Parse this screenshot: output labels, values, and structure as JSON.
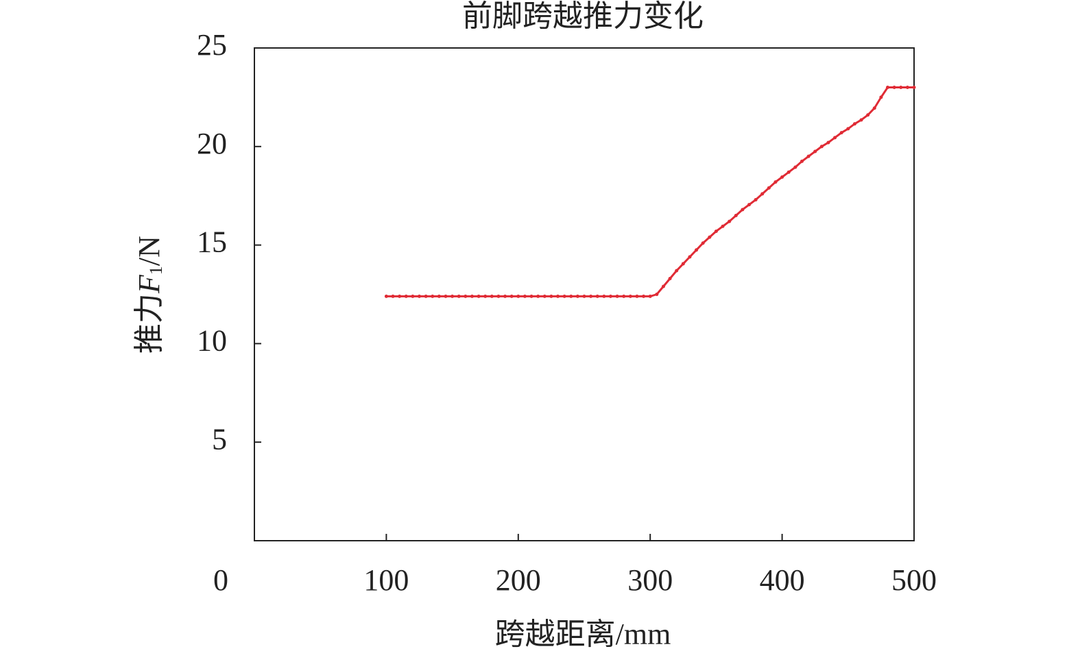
{
  "chart_data": {
    "type": "line",
    "title": "前脚跨越推力变化",
    "x_label": "跨越距离/mm",
    "y_label": {
      "name": "推力",
      "symbol": "F",
      "subscript": "1",
      "unit": "/N"
    },
    "x": [
      100,
      105,
      110,
      115,
      120,
      125,
      130,
      135,
      140,
      145,
      150,
      155,
      160,
      165,
      170,
      175,
      180,
      185,
      190,
      195,
      200,
      205,
      210,
      215,
      220,
      225,
      230,
      235,
      240,
      245,
      250,
      255,
      260,
      265,
      270,
      275,
      280,
      285,
      290,
      295,
      300,
      305,
      310,
      315,
      320,
      325,
      330,
      335,
      340,
      345,
      350,
      355,
      360,
      365,
      370,
      375,
      380,
      385,
      390,
      395,
      400,
      405,
      410,
      415,
      420,
      425,
      430,
      435,
      440,
      445,
      450,
      455,
      460,
      465,
      470,
      475,
      480,
      485,
      490,
      495,
      500
    ],
    "series": [
      {
        "color": "#e02b35",
        "values": [
          12.4,
          12.4,
          12.4,
          12.4,
          12.4,
          12.4,
          12.4,
          12.4,
          12.4,
          12.4,
          12.4,
          12.4,
          12.4,
          12.4,
          12.4,
          12.4,
          12.4,
          12.4,
          12.4,
          12.4,
          12.4,
          12.4,
          12.4,
          12.4,
          12.4,
          12.4,
          12.4,
          12.4,
          12.4,
          12.4,
          12.4,
          12.4,
          12.4,
          12.4,
          12.4,
          12.4,
          12.4,
          12.4,
          12.4,
          12.4,
          12.4,
          12.5,
          12.9,
          13.3,
          13.7,
          14.05,
          14.4,
          14.75,
          15.1,
          15.4,
          15.7,
          15.95,
          16.2,
          16.5,
          16.8,
          17.05,
          17.3,
          17.6,
          17.9,
          18.2,
          18.45,
          18.7,
          18.95,
          19.25,
          19.5,
          19.75,
          20.0,
          20.2,
          20.45,
          20.7,
          20.9,
          21.15,
          21.35,
          21.6,
          21.95,
          22.5,
          23.0,
          23.0,
          23.0,
          23.0,
          23.0
        ]
      }
    ],
    "xlim": [
      0,
      500
    ],
    "xticks": [
      0,
      100,
      200,
      300,
      400,
      500
    ],
    "ylim": [
      0,
      25
    ],
    "yticks": [
      5,
      10,
      15,
      20,
      25
    ]
  }
}
